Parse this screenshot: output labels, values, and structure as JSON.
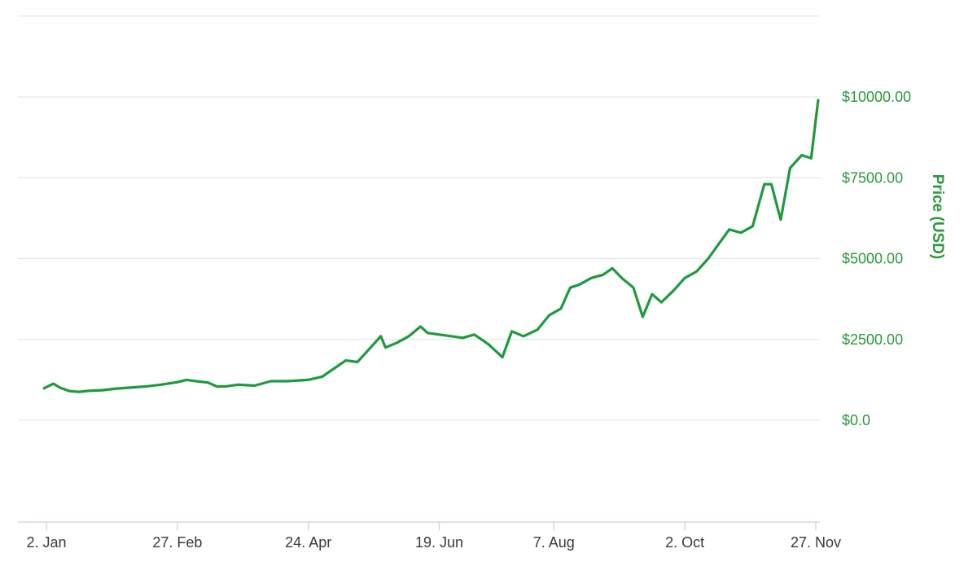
{
  "chart_data": {
    "type": "line",
    "title": "",
    "xlabel": "",
    "ylabel": "Price (USD)",
    "ylim": [
      0,
      10000
    ],
    "yticks": [
      {
        "value": 0,
        "label": "$0.0"
      },
      {
        "value": 2500,
        "label": "$2500.00"
      },
      {
        "value": 5000,
        "label": "$5000.00"
      },
      {
        "value": 7500,
        "label": "$7500.00"
      },
      {
        "value": 10000,
        "label": "$10000.00"
      }
    ],
    "xticks": [
      {
        "date": "2017-01-02",
        "label": "2. Jan"
      },
      {
        "date": "2017-02-27",
        "label": "27. Feb"
      },
      {
        "date": "2017-04-24",
        "label": "24. Apr"
      },
      {
        "date": "2017-06-19",
        "label": "19. Jun"
      },
      {
        "date": "2017-08-07",
        "label": "7. Aug"
      },
      {
        "date": "2017-10-02",
        "label": "2. Oct"
      },
      {
        "date": "2017-11-27",
        "label": "27. Nov"
      }
    ],
    "grid": true,
    "line_color": "#1e9a3c",
    "series": [
      {
        "x": [
          "2017-01-01",
          "2017-01-05",
          "2017-01-08",
          "2017-01-12",
          "2017-01-16",
          "2017-01-20",
          "2017-01-26",
          "2017-02-01",
          "2017-02-07",
          "2017-02-14",
          "2017-02-20",
          "2017-02-27",
          "2017-03-03",
          "2017-03-08",
          "2017-03-12",
          "2017-03-16",
          "2017-03-20",
          "2017-03-25",
          "2017-04-01",
          "2017-04-08",
          "2017-04-15",
          "2017-04-24",
          "2017-04-30",
          "2017-05-05",
          "2017-05-10",
          "2017-05-15",
          "2017-05-20",
          "2017-05-25",
          "2017-05-27",
          "2017-06-01",
          "2017-06-06",
          "2017-06-11",
          "2017-06-14",
          "2017-06-19",
          "2017-06-24",
          "2017-06-29",
          "2017-07-04",
          "2017-07-10",
          "2017-07-16",
          "2017-07-20",
          "2017-07-25",
          "2017-07-31",
          "2017-08-05",
          "2017-08-10",
          "2017-08-14",
          "2017-08-18",
          "2017-08-23",
          "2017-08-28",
          "2017-09-01",
          "2017-09-05",
          "2017-09-10",
          "2017-09-14",
          "2017-09-18",
          "2017-09-22",
          "2017-09-27",
          "2017-10-02",
          "2017-10-07",
          "2017-10-12",
          "2017-10-17",
          "2017-10-21",
          "2017-10-26",
          "2017-10-31",
          "2017-11-05",
          "2017-11-08",
          "2017-11-12",
          "2017-11-16",
          "2017-11-21",
          "2017-11-25",
          "2017-11-28"
        ],
        "values": [
          990,
          1130,
          1000,
          900,
          880,
          910,
          930,
          980,
          1010,
          1050,
          1100,
          1180,
          1250,
          1200,
          1170,
          1040,
          1050,
          1100,
          1070,
          1210,
          1210,
          1250,
          1350,
          1600,
          1850,
          1800,
          2200,
          2600,
          2250,
          2400,
          2600,
          2900,
          2700,
          2650,
          2600,
          2550,
          2650,
          2350,
          1950,
          2750,
          2600,
          2800,
          3250,
          3450,
          4100,
          4200,
          4400,
          4500,
          4700,
          4400,
          4100,
          3200,
          3900,
          3650,
          4000,
          4400,
          4600,
          5000,
          5500,
          5900,
          5800,
          6000,
          7300,
          7300,
          6200,
          7800,
          8200,
          8100,
          9900
        ]
      }
    ]
  }
}
